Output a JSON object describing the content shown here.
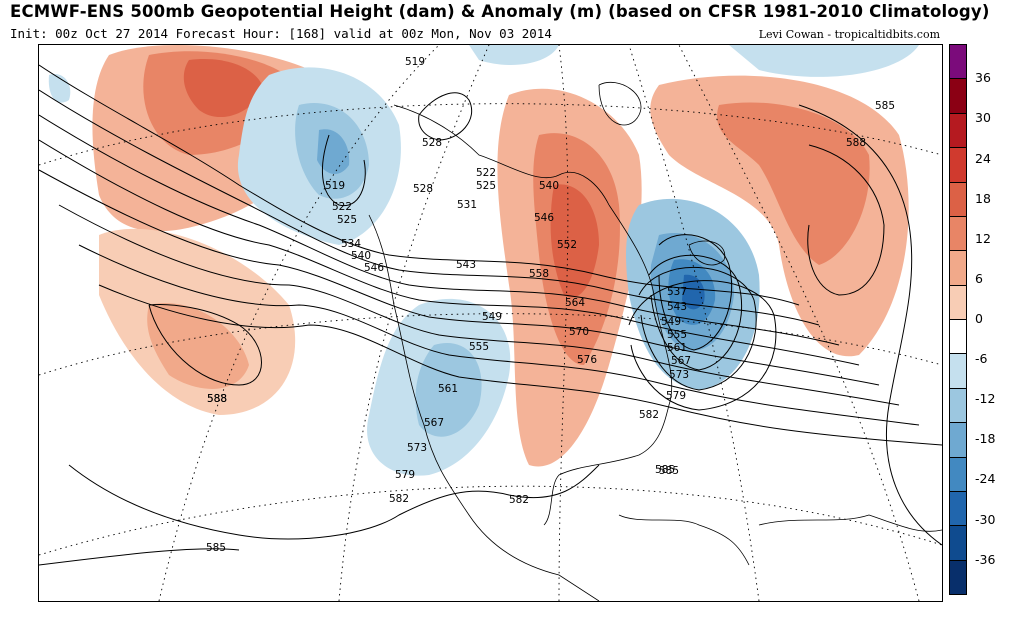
{
  "header": {
    "title": "ECMWF-ENS 500mb Geopotential Height (dam) & Anomaly (m) (based on CFSR 1981-2010 Climatology)",
    "subtitle": "Init: 00z Oct 27 2014 Forecast Hour: [168] valid at 00z Mon, Nov 03 2014",
    "credit": "Levi Cowan - tropicaltidbits.com"
  },
  "contour_labels": [
    "519",
    "528",
    "522",
    "525",
    "531",
    "519",
    "522",
    "525",
    "534",
    "540",
    "546",
    "528",
    "543",
    "540",
    "546",
    "552",
    "558",
    "564",
    "570",
    "576",
    "549",
    "555",
    "561",
    "567",
    "573",
    "579",
    "582",
    "585",
    "588",
    "585",
    "588",
    "588",
    "582",
    "585",
    "537",
    "543",
    "549",
    "555",
    "561",
    "567",
    "573",
    "579",
    "582",
    "585"
  ],
  "colorbar": {
    "colors": [
      "#7b0b7b",
      "#8b0014",
      "#b51a20",
      "#d03a2e",
      "#dc6146",
      "#e88566",
      "#f1a98a",
      "#f8cdb5",
      "#ffffff",
      "#c5e0ee",
      "#9cc7e0",
      "#6fa9d1",
      "#4289c1",
      "#2166ad",
      "#0f4b8f",
      "#082f6b"
    ],
    "ticks": [
      "36",
      "30",
      "24",
      "18",
      "12",
      "6",
      "0",
      "-6",
      "-12",
      "-18",
      "-24",
      "-30",
      "-36"
    ]
  }
}
